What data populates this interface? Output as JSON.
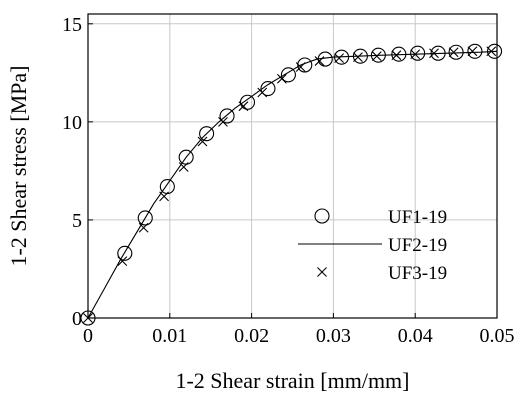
{
  "chart_data": {
    "type": "scatter",
    "xlabel": "1-2 Shear strain [mm/mm]",
    "ylabel": "1-2 Shear stress [MPa]",
    "xlim": [
      0,
      0.05
    ],
    "ylim": [
      0,
      15.5
    ],
    "x_ticks": [
      0,
      0.01,
      0.02,
      0.03,
      0.04,
      0.05
    ],
    "x_tick_labels": [
      "0",
      "0.01",
      "0.02",
      "0.03",
      "0.04",
      "0.05"
    ],
    "y_ticks": [
      0,
      5,
      10,
      15
    ],
    "y_tick_labels": [
      "0",
      "5",
      "10",
      "15"
    ],
    "grid": true,
    "legend_position": "center-right",
    "series": [
      {
        "name": "UF1-19",
        "marker": "circle",
        "x": [
          0,
          0.0045,
          0.007,
          0.0097,
          0.012,
          0.0145,
          0.017,
          0.0195,
          0.022,
          0.0245,
          0.0265,
          0.029,
          0.031,
          0.0333,
          0.0355,
          0.038,
          0.0403,
          0.0428,
          0.045,
          0.0473,
          0.0497
        ],
        "y": [
          0,
          3.3,
          5.1,
          6.7,
          8.2,
          9.4,
          10.3,
          11.0,
          11.7,
          12.4,
          12.9,
          13.2,
          13.3,
          13.35,
          13.4,
          13.45,
          13.5,
          13.5,
          13.55,
          13.6,
          13.6
        ]
      },
      {
        "name": "UF2-19",
        "marker": "line",
        "x": [
          0,
          0.002,
          0.004,
          0.006,
          0.008,
          0.01,
          0.012,
          0.014,
          0.016,
          0.018,
          0.02,
          0.022,
          0.024,
          0.026,
          0.028,
          0.03,
          0.033,
          0.036,
          0.04,
          0.044,
          0.048,
          0.05
        ],
        "y": [
          0,
          1.5,
          3.0,
          4.4,
          5.8,
          7.0,
          8.2,
          9.2,
          10.0,
          10.7,
          11.3,
          11.9,
          12.4,
          12.9,
          13.2,
          13.3,
          13.35,
          13.4,
          13.45,
          13.5,
          13.55,
          13.6
        ]
      },
      {
        "name": "UF3-19",
        "marker": "x",
        "x": [
          0,
          0.0042,
          0.0068,
          0.0093,
          0.0117,
          0.014,
          0.0165,
          0.019,
          0.0213,
          0.0237,
          0.026,
          0.0283,
          0.0307,
          0.033,
          0.0353,
          0.0377,
          0.04,
          0.0423,
          0.0447,
          0.047,
          0.0493
        ],
        "y": [
          0,
          2.9,
          4.6,
          6.2,
          7.7,
          9.0,
          10.0,
          10.8,
          11.5,
          12.2,
          12.8,
          13.1,
          13.25,
          13.3,
          13.35,
          13.4,
          13.45,
          13.5,
          13.55,
          13.6,
          13.6
        ]
      }
    ]
  }
}
